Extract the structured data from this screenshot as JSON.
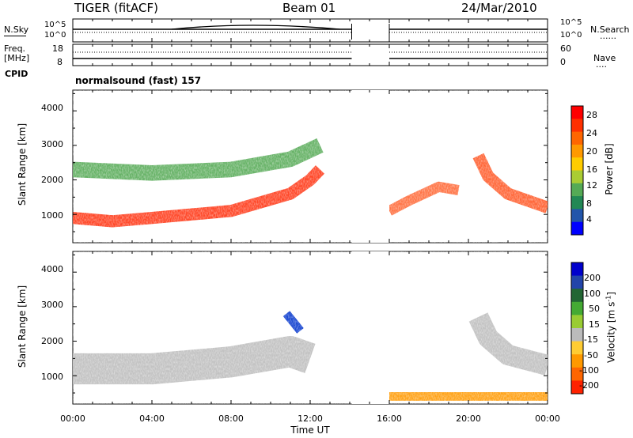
{
  "header": {
    "radar": "TIGER (fitACF)",
    "beam": "Beam 01",
    "date": "24/Mar/2010"
  },
  "noise_panel": {
    "left_label": "N.Sky",
    "right_label": "N.Search",
    "right_legend": "......",
    "left_ticks": [
      "10^5",
      "10^0"
    ],
    "right_ticks": [
      "10^5",
      "10^0"
    ]
  },
  "freq_panel": {
    "left_label_1": "Freq.",
    "left_label_2": "[MHz]",
    "right_label": "Nave",
    "right_legend": "....",
    "left_ticks": [
      "18",
      "8"
    ],
    "right_ticks": [
      "60",
      "0"
    ]
  },
  "cpid": {
    "label": "CPID",
    "text": "normalsound (fast) 157"
  },
  "power_panel": {
    "ylabel": "Slant Range [km]",
    "yticks": [
      "4000",
      "3000",
      "2000",
      "1000"
    ],
    "colorbar_label": "Power [dB]",
    "colorbar_ticks": [
      "28",
      "24",
      "20",
      "16",
      "12",
      "8",
      "4"
    ],
    "colorbar_colors": [
      "#ff0000",
      "#ff3000",
      "#ff6600",
      "#ff9900",
      "#ffcc00",
      "#aacc33",
      "#55aa55",
      "#228855",
      "#2255aa",
      "#0000ff"
    ]
  },
  "velocity_panel": {
    "ylabel": "Slant Range [km]",
    "yticks": [
      "4000",
      "3000",
      "2000",
      "1000"
    ],
    "colorbar_label": "Velocity [m s",
    "colorbar_label_sup": "-1",
    "colorbar_label_end": "]",
    "colorbar_ticks": [
      "200",
      "100",
      "50",
      "15",
      "-15",
      "-50",
      "-100",
      "-200"
    ],
    "colorbar_colors": [
      "#0000cc",
      "#2244aa",
      "#226633",
      "#44aa33",
      "#99cc33",
      "#bbbbbb",
      "#ffcc33",
      "#ff9900",
      "#ff6600",
      "#ff2200"
    ]
  },
  "xaxis": {
    "label": "Time UT",
    "ticks": [
      "00:00",
      "04:00",
      "08:00",
      "12:00",
      "16:00",
      "20:00",
      "00:00"
    ]
  },
  "chart_data": {
    "type": "heatmap",
    "title": "TIGER (fitACF) Beam 01 24/Mar/2010",
    "xlabel": "Time UT",
    "ylabel": "Slant Range [km]",
    "xlim_hours": [
      0,
      24
    ],
    "ylim_km": [
      180,
      4600
    ],
    "data_gap_hours": [
      14.1,
      16.0
    ],
    "power_colorbar_db": [
      4,
      8,
      12,
      16,
      20,
      24,
      28
    ],
    "velocity_colorbar_ms": [
      -200,
      -100,
      -50,
      -15,
      15,
      50,
      100,
      200
    ],
    "power_bands": [
      {
        "name": "main",
        "color": "#ff3311",
        "points_hours_km": [
          [
            0,
            900
          ],
          [
            2,
            800
          ],
          [
            4,
            900
          ],
          [
            8,
            1100
          ],
          [
            11,
            1600
          ],
          [
            12,
            2000
          ],
          [
            12.5,
            2300
          ]
        ],
        "thickness_km": 350
      },
      {
        "name": "upper",
        "color": "#55aa55",
        "points_hours_km": [
          [
            0,
            2300
          ],
          [
            4,
            2200
          ],
          [
            8,
            2300
          ],
          [
            11,
            2600
          ],
          [
            12.5,
            3000
          ]
        ],
        "thickness_km": 450
      },
      {
        "name": "evening-right",
        "color": "#ff5522",
        "points_hours_km": [
          [
            20.5,
            2700
          ],
          [
            21,
            2100
          ],
          [
            22,
            1600
          ],
          [
            24,
            1200
          ]
        ],
        "thickness_km": 350
      },
      {
        "name": "evening-left",
        "color": "#ff6633",
        "points_hours_km": [
          [
            16,
            1100
          ],
          [
            17,
            1400
          ],
          [
            18.5,
            1800
          ],
          [
            19.5,
            1700
          ]
        ],
        "thickness_km": 300
      }
    ],
    "velocity_bands": [
      {
        "name": "main-gray",
        "color": "#bbbbbb",
        "points_hours_km": [
          [
            0,
            1200
          ],
          [
            4,
            1200
          ],
          [
            8,
            1400
          ],
          [
            11,
            1700
          ],
          [
            12,
            1500
          ]
        ],
        "thickness_km": 900
      },
      {
        "name": "evening-gray",
        "color": "#bbbbbb",
        "points_hours_km": [
          [
            20.5,
            2700
          ],
          [
            21,
            2100
          ],
          [
            22,
            1600
          ],
          [
            24,
            1300
          ]
        ],
        "thickness_km": 600
      },
      {
        "name": "positive-streak",
        "color": "#0033cc",
        "points_hours_km": [
          [
            10.8,
            2800
          ],
          [
            11.5,
            2300
          ]
        ],
        "thickness_km": 250
      },
      {
        "name": "negative-low",
        "color": "#ff9900",
        "points_hours_km": [
          [
            16,
            400
          ],
          [
            24,
            400
          ]
        ],
        "thickness_km": 250
      }
    ]
  }
}
